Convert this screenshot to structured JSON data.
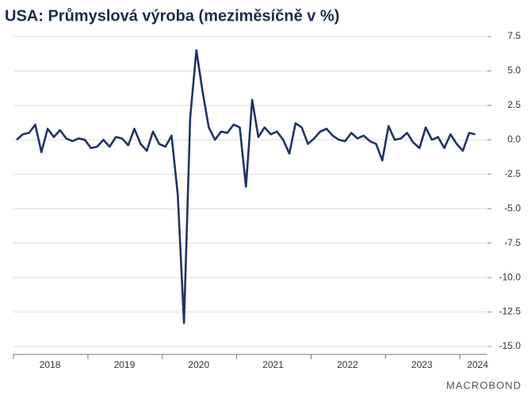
{
  "chart_data": {
    "type": "line",
    "title": "USA: Průmyslová výroba (meziměsíčně v %)",
    "brand": "MACROBOND",
    "categories": [
      null,
      null,
      null,
      null,
      null,
      "2018",
      null,
      null,
      null,
      null,
      null,
      null,
      null,
      null,
      null,
      null,
      null,
      "2019",
      null,
      null,
      null,
      null,
      null,
      null,
      null,
      null,
      null,
      null,
      null,
      "2020",
      null,
      null,
      null,
      null,
      null,
      null,
      null,
      null,
      null,
      null,
      null,
      "2021",
      null,
      null,
      null,
      null,
      null,
      null,
      null,
      null,
      null,
      null,
      null,
      "2022",
      null,
      null,
      null,
      null,
      null,
      null,
      null,
      null,
      null,
      null,
      null,
      "2023",
      null,
      null,
      null,
      null,
      null,
      null,
      null,
      null,
      "2024"
    ],
    "series": [
      {
        "name": "Průmyslová výroba",
        "color": "#1f3560",
        "values": [
          0.0,
          0.4,
          0.5,
          1.1,
          -0.9,
          0.8,
          0.2,
          0.7,
          0.1,
          -0.1,
          0.1,
          0.0,
          -0.6,
          -0.5,
          0.0,
          -0.5,
          0.2,
          0.1,
          -0.4,
          0.8,
          -0.3,
          -0.8,
          0.6,
          -0.3,
          -0.5,
          0.3,
          -4.0,
          -13.3,
          1.6,
          6.5,
          3.5,
          0.9,
          0.0,
          0.6,
          0.5,
          1.1,
          0.9,
          -3.4,
          2.9,
          0.2,
          0.9,
          0.4,
          0.6,
          0.0,
          -1.0,
          1.2,
          0.9,
          -0.3,
          0.1,
          0.6,
          0.8,
          0.3,
          0.0,
          -0.1,
          0.5,
          0.1,
          0.3,
          -0.1,
          -0.3,
          -1.5,
          1.0,
          0.0,
          0.1,
          0.5,
          -0.2,
          -0.6,
          0.9,
          0.0,
          0.2,
          -0.6,
          0.4,
          -0.3,
          -0.8,
          0.5,
          0.4
        ]
      }
    ],
    "ylim": [
      -15,
      7.5
    ],
    "yticks": [
      7.5,
      {
        "value": 5,
        "label": "5.0"
      },
      2.5,
      {
        "value": 0,
        "label": "0.0"
      },
      -2.5,
      {
        "value": -5,
        "label": "-5.0"
      },
      -7.5,
      {
        "value": -10,
        "label": "-10.0"
      },
      -12.5,
      {
        "value": -15,
        "label": "-15.0"
      }
    ],
    "grid": true
  }
}
